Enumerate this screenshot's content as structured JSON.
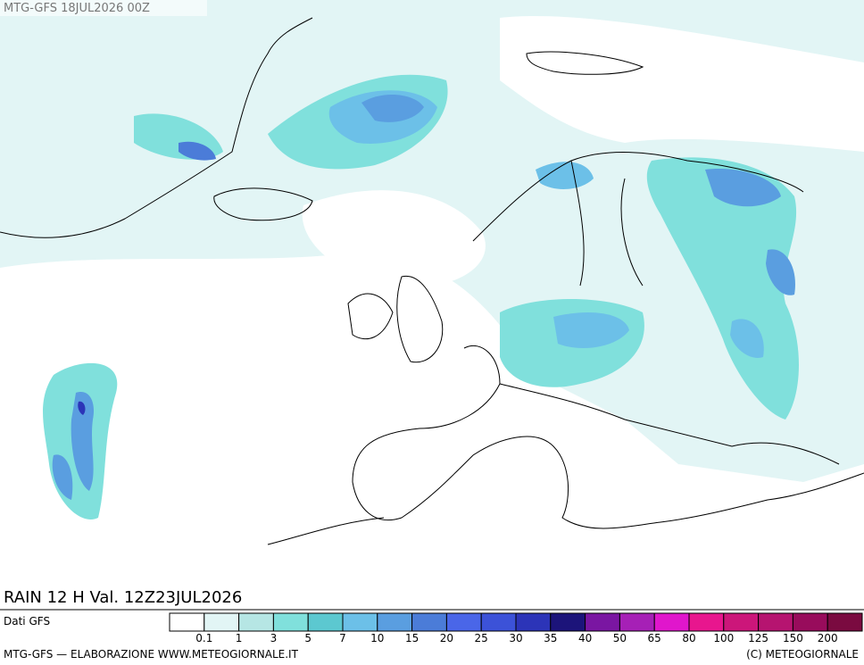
{
  "header": "MTG-GFS 18JUL2026 00Z",
  "panel_title": "RAIN 12 H Val. 12Z23JUL2026",
  "source": "Dati GFS",
  "footer_left": "MTG-GFS — ELABORAZIONE WWW.METEOGIORNALE.IT",
  "footer_right": "(C) METEOGIORNALE",
  "legend": {
    "labels": [
      0.1,
      1,
      3,
      5,
      7,
      10,
      15,
      20,
      25,
      30,
      35,
      40,
      50,
      65,
      80,
      100,
      125,
      150,
      200
    ],
    "colors": [
      "#ffffff",
      "#e2f5f5",
      "#b6e6e4",
      "#80e0dc",
      "#5cc8d0",
      "#6cc0e8",
      "#5a9ee0",
      "#4b7cd8",
      "#4a66e8",
      "#3c52d8",
      "#2c34b8",
      "#1c147a",
      "#7a16a2",
      "#a620b6",
      "#e016cc",
      "#e8168e",
      "#cc167a",
      "#b61470",
      "#980c5c",
      "#7a0a40"
    ]
  }
}
